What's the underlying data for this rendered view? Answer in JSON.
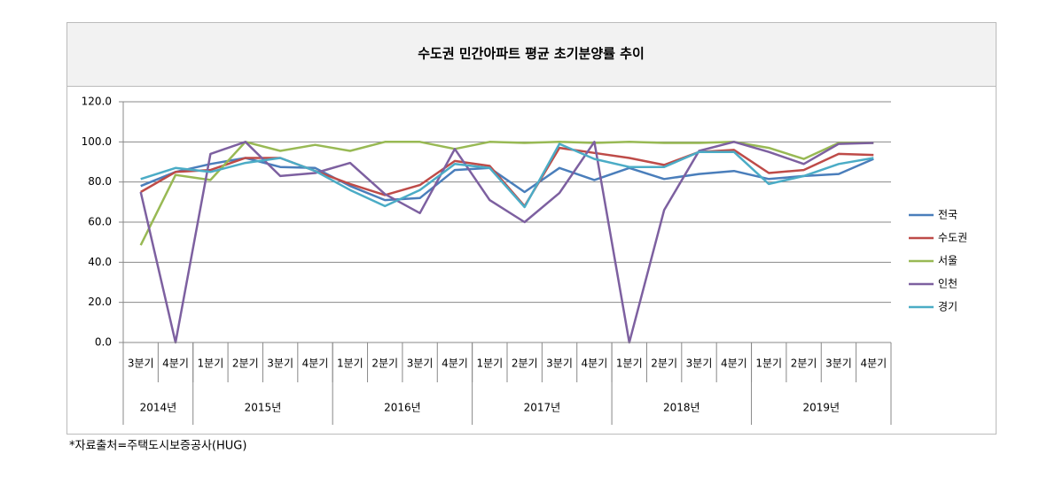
{
  "chart_data": {
    "type": "line",
    "title": "수도권 민간아파트 평균 초기분양률 추이",
    "categories": [
      "3분기",
      "4분기",
      "1분기",
      "2분기",
      "3분기",
      "4분기",
      "1분기",
      "2분기",
      "3분기",
      "4분기",
      "1분기",
      "2분기",
      "3분기",
      "4분기",
      "1분기",
      "2분기",
      "3분기",
      "4분기",
      "1분기",
      "2분기",
      "3분기",
      "4분기"
    ],
    "category_groups": [
      {
        "label": "2014년",
        "span": 2
      },
      {
        "label": "2015년",
        "span": 4
      },
      {
        "label": "2016년",
        "span": 4
      },
      {
        "label": "2017년",
        "span": 4
      },
      {
        "label": "2018년",
        "span": 4
      },
      {
        "label": "2019년",
        "span": 4
      }
    ],
    "series": [
      {
        "name": "전국",
        "color": "#4a7ebb",
        "values": [
          78,
          85,
          89,
          92,
          87.5,
          87,
          78,
          71,
          72,
          86,
          87,
          75,
          87,
          81,
          87,
          81.5,
          84,
          85.5,
          81.5,
          83,
          84,
          91.5
        ]
      },
      {
        "name": "수도권",
        "color": "#be4b48",
        "values": [
          75,
          85,
          86,
          92,
          92,
          85.5,
          79,
          73.5,
          78.5,
          90.5,
          88,
          68,
          97,
          94.5,
          92,
          88.5,
          95,
          96,
          84.5,
          86,
          94,
          93.5
        ]
      },
      {
        "name": "서울",
        "color": "#98b954",
        "values": [
          48.5,
          83.5,
          81,
          100,
          95.5,
          98.5,
          95.5,
          100,
          100,
          96.5,
          100,
          99.5,
          100,
          99.5,
          100,
          99.5,
          99.5,
          100,
          97,
          91.5,
          99.5,
          99.5
        ]
      },
      {
        "name": "인천",
        "color": "#7d60a0",
        "values": [
          75,
          0,
          94,
          100,
          83,
          84.5,
          89.5,
          74,
          64.5,
          96.5,
          71,
          60,
          74.5,
          100,
          0,
          66,
          95.5,
          100,
          95,
          89,
          99,
          99.5
        ]
      },
      {
        "name": "경기",
        "color": "#4bacc6",
        "values": [
          81.5,
          87,
          85,
          89.5,
          92,
          85.5,
          76,
          68,
          76,
          89,
          87,
          67.5,
          99,
          91.5,
          87.5,
          87.5,
          95,
          95,
          79,
          83,
          89,
          92
        ]
      }
    ],
    "ylim": [
      0,
      120
    ],
    "yticks": [
      {
        "value": 0,
        "label": "0.0"
      },
      {
        "value": 20,
        "label": "20.0"
      },
      {
        "value": 40,
        "label": "40.0"
      },
      {
        "value": 60,
        "label": "60.0"
      },
      {
        "value": 80,
        "label": "80.0"
      },
      {
        "value": 100,
        "label": "100.0"
      },
      {
        "value": 120,
        "label": "120.0"
      }
    ],
    "grid": true,
    "legend": "right",
    "footnote": "*자료출처=주택도시보증공사(HUG)"
  }
}
